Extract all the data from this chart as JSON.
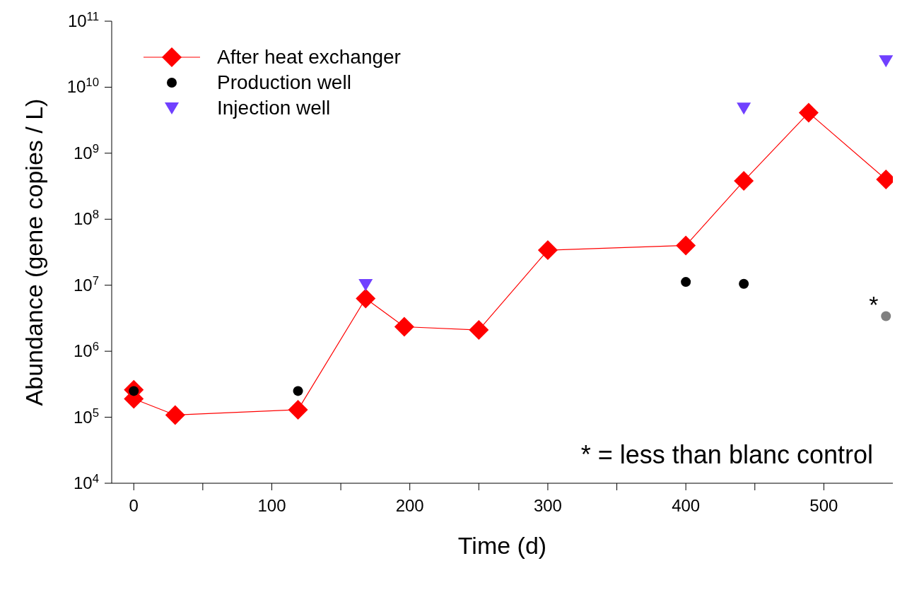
{
  "chart_data": {
    "type": "scatter",
    "xlabel": "Time (d)",
    "ylabel": "Abundance (gene copies / L)",
    "log": "y",
    "grid": false,
    "legend": "top left",
    "xlim": [
      -16,
      550
    ],
    "xticks": [
      0,
      {
        "value": 50,
        "label": null
      },
      100,
      {
        "value": 150,
        "label": null
      },
      200,
      {
        "value": 250,
        "label": null
      },
      300,
      {
        "value": 350,
        "label": null
      },
      400,
      {
        "value": 450,
        "label": null
      },
      500
    ],
    "ylim": [
      10000,
      100000000000
    ],
    "yticks": [
      {
        "value": 10000,
        "label": "10$^{4}$"
      },
      {
        "value": 100000,
        "label": "10$^{5}$"
      },
      {
        "value": 1000000,
        "label": "10$^{6}$"
      },
      {
        "value": 10000000,
        "label": "10$^{7}$"
      },
      {
        "value": 100000000,
        "label": "10$^{8}$"
      },
      {
        "value": 1000000000,
        "label": "10$^{9}$"
      },
      {
        "value": 10000000000,
        "label": "10$^{10}$"
      },
      {
        "value": 100000000000,
        "label": "10$^{11}$"
      }
    ],
    "series": [
      {
        "name": "After heat exchanger",
        "type": "line",
        "color": "#ff0000",
        "marker": "diamond",
        "line_style": "solid",
        "x": [
          0,
          0,
          30,
          119,
          168,
          196,
          250,
          300,
          400,
          442,
          489,
          545
        ],
        "values": [
          260000,
          190000,
          108000,
          130000,
          6300000,
          2350000,
          2100000,
          34000000,
          40000000,
          380000000,
          4100000000,
          400000000
        ]
      },
      {
        "name": "Production well",
        "type": "scatter",
        "color": "#000000",
        "marker": "circle",
        "x": [
          0,
          119,
          400,
          442,
          545
        ],
        "values": [
          250000,
          250000,
          11200000,
          10500000,
          3400000
        ],
        "colors": [
          "#000000",
          "#000000",
          "#000000",
          "#000000",
          "#808080"
        ]
      },
      {
        "name": "Injection well",
        "type": "scatter",
        "color": "#7040ff",
        "marker": "triangle",
        "x": [
          168,
          442,
          545
        ],
        "values": [
          10200000,
          4800000000,
          25000000000
        ]
      }
    ],
    "annotations": [
      {
        "text": "*",
        "x": 545,
        "y": 3400000
      },
      "* = less than blanc control"
    ]
  }
}
